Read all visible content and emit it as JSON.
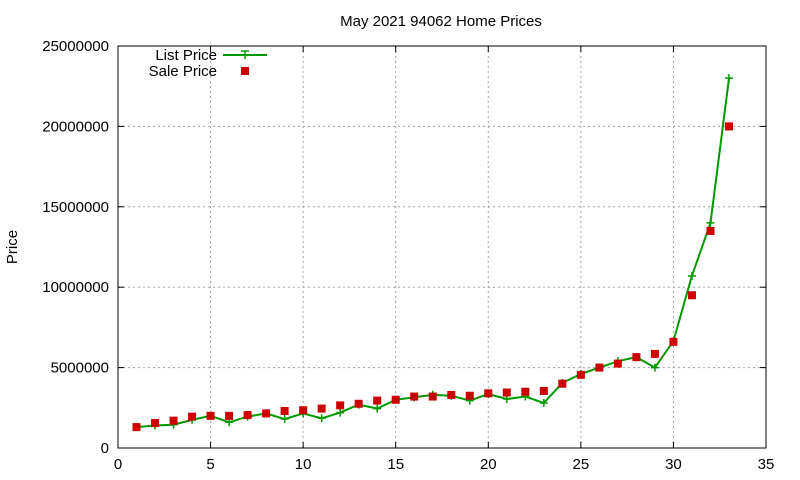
{
  "chart_data": {
    "type": "line",
    "title": "May 2021 94062 Home Prices",
    "xlabel": "",
    "ylabel": "Price",
    "xlim": [
      0,
      35
    ],
    "ylim": [
      0,
      25000000
    ],
    "x_ticks": [
      0,
      5,
      10,
      15,
      20,
      25,
      30,
      35
    ],
    "y_ticks": [
      0,
      5000000,
      10000000,
      15000000,
      20000000,
      25000000
    ],
    "x_tick_labels": [
      "0",
      "5",
      "10",
      "15",
      "20",
      "25",
      "30",
      "35"
    ],
    "y_tick_labels": [
      "0",
      "5000000",
      "10000000",
      "15000000",
      "20000000",
      "25000000"
    ],
    "grid": true,
    "legend_position": "top-left",
    "x": [
      1,
      2,
      3,
      4,
      5,
      6,
      7,
      8,
      9,
      10,
      11,
      12,
      13,
      14,
      15,
      16,
      17,
      18,
      19,
      20,
      21,
      22,
      23,
      24,
      25,
      26,
      27,
      28,
      29,
      30,
      31,
      32,
      33
    ],
    "series": [
      {
        "name": "List Price",
        "style": "line-with-plus-markers",
        "color": "#009900",
        "values": [
          1300000,
          1400000,
          1450000,
          1750000,
          2000000,
          1600000,
          1950000,
          2150000,
          1800000,
          2150000,
          1850000,
          2200000,
          2700000,
          2450000,
          3000000,
          3150000,
          3300000,
          3250000,
          2950000,
          3350000,
          3050000,
          3200000,
          2800000,
          4050000,
          4600000,
          5000000,
          5400000,
          5650000,
          5000000,
          6650000,
          10700000,
          14000000,
          23000000
        ]
      },
      {
        "name": "Sale Price",
        "style": "square-markers",
        "color": "#cc0000",
        "values": [
          1300000,
          1550000,
          1700000,
          1950000,
          2000000,
          2000000,
          2050000,
          2150000,
          2300000,
          2350000,
          2450000,
          2650000,
          2750000,
          2950000,
          3000000,
          3200000,
          3200000,
          3300000,
          3250000,
          3400000,
          3450000,
          3500000,
          3550000,
          4000000,
          4550000,
          5000000,
          5250000,
          5650000,
          5850000,
          6600000,
          9500000,
          13500000,
          20000000
        ]
      }
    ]
  }
}
